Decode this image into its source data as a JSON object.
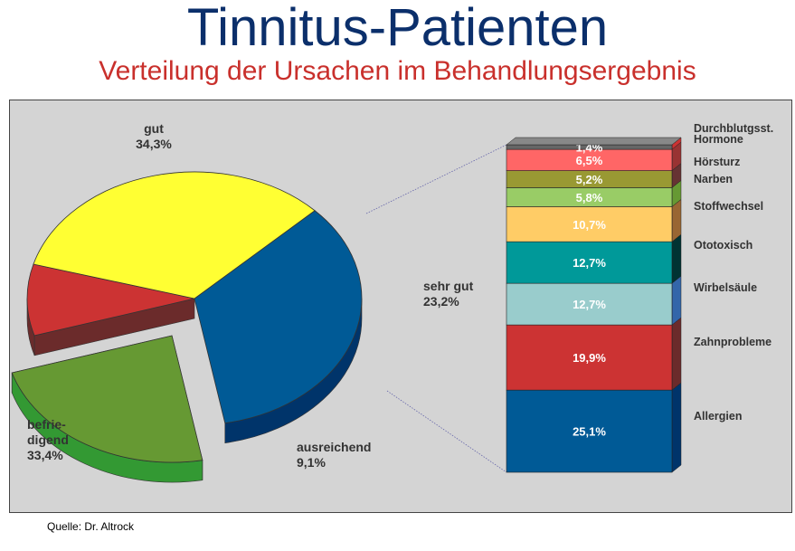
{
  "page": {
    "title": "Tinnitus-Patienten",
    "subtitle": "Verteilung der Ursachen im Behandlungsergebnis",
    "source": "Quelle: Dr. Altrock"
  },
  "chart_data": [
    {
      "type": "pie",
      "slices": [
        {
          "label": "gut",
          "value_label": "34,3%",
          "value": 34.3,
          "color": "#005a96",
          "side_color": "#00346a"
        },
        {
          "label": "sehr gut",
          "value_label": "23,2%",
          "value": 23.2,
          "color": "#669933",
          "side_color": "#339933",
          "exploded": true
        },
        {
          "label": "ausreichend",
          "value_label": "9,1%",
          "value": 9.1,
          "color": "#cc3333",
          "side_color": "#6b2b2b"
        },
        {
          "label": "befrie-\ndigend",
          "value_label": "33,4%",
          "value": 33.4,
          "color": "#ffff33",
          "side_color": "#999933"
        }
      ]
    },
    {
      "type": "bar",
      "stacked": true,
      "segments": [
        {
          "label": "Allergien",
          "value_label": "25,1%",
          "value": 25.1,
          "color": "#005a96",
          "side_color": "#00346a"
        },
        {
          "label": "Zahnprobleme",
          "value_label": "19,9%",
          "value": 19.9,
          "color": "#cc3333",
          "side_color": "#6b2b2b"
        },
        {
          "label": "Wirbelsäule",
          "value_label": "12,7%",
          "value": 12.7,
          "color": "#99cccc",
          "side_color": "#3366aa"
        },
        {
          "label": "Ototoxisch",
          "value_label": "12,7%",
          "value": 12.7,
          "color": "#009999",
          "side_color": "#003333"
        },
        {
          "label": "Stoffwechsel",
          "value_label": "10,7%",
          "value": 10.7,
          "color": "#ffcc66",
          "side_color": "#996633"
        },
        {
          "label": "Narben",
          "value_label": "5,8%",
          "value": 5.8,
          "color": "#99cc66",
          "side_color": "#669933"
        },
        {
          "label": "Hörsturz",
          "value_label": "5,2%",
          "value": 5.2,
          "color": "#999933",
          "side_color": "#663333"
        },
        {
          "label": "Hormone",
          "value_label": "6,5%",
          "value": 6.5,
          "color": "#ff6666",
          "side_color": "#993333"
        },
        {
          "label": "Durchblutgsst.",
          "value_label": "1,4%",
          "value": 1.4,
          "color": "#666666",
          "side_color": "#cc3333"
        }
      ]
    }
  ]
}
